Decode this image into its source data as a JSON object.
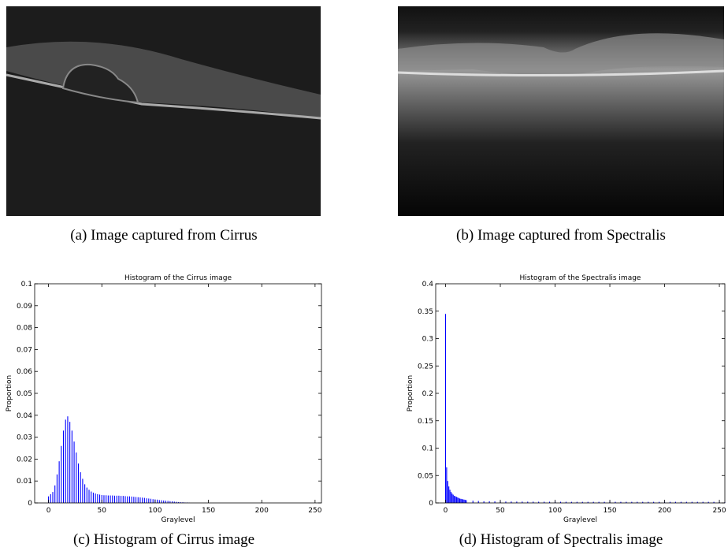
{
  "panels": [
    {
      "caption": "(a) Image captured from Cirrus"
    },
    {
      "caption": "(b) Image captured from Spectralis"
    }
  ],
  "chart_data": [
    {
      "type": "bar",
      "title": "Histogram of the Cirrus image",
      "caption": "(c) Histogram  of Cirrus image",
      "x_label": "Graylevel",
      "y_label": "Proportion",
      "color": "#0000ff",
      "x": [
        0,
        2,
        4,
        6,
        8,
        10,
        12,
        14,
        16,
        18,
        20,
        22,
        24,
        26,
        28,
        30,
        32,
        34,
        36,
        38,
        40,
        42,
        44,
        46,
        48,
        50,
        52,
        54,
        56,
        58,
        60,
        62,
        64,
        66,
        68,
        70,
        72,
        74,
        76,
        78,
        80,
        82,
        84,
        86,
        88,
        90,
        92,
        94,
        96,
        98,
        100,
        102,
        104,
        106,
        108,
        110,
        112,
        114,
        116,
        118,
        120,
        122,
        124,
        126,
        128,
        130,
        132
      ],
      "values": [
        0.003,
        0.004,
        0.005,
        0.008,
        0.013,
        0.019,
        0.026,
        0.033,
        0.038,
        0.0395,
        0.037,
        0.033,
        0.028,
        0.023,
        0.018,
        0.014,
        0.011,
        0.0085,
        0.007,
        0.006,
        0.0052,
        0.0047,
        0.0043,
        0.004,
        0.0038,
        0.0036,
        0.0035,
        0.0035,
        0.0034,
        0.0034,
        0.0034,
        0.0033,
        0.0033,
        0.0033,
        0.0032,
        0.0032,
        0.0031,
        0.003,
        0.003,
        0.0029,
        0.0028,
        0.0027,
        0.0026,
        0.0025,
        0.0024,
        0.0023,
        0.0021,
        0.002,
        0.0019,
        0.0017,
        0.0016,
        0.0015,
        0.0013,
        0.0012,
        0.0011,
        0.001,
        0.0009,
        0.0008,
        0.0007,
        0.0006,
        0.0005,
        0.0004,
        0.0003,
        0.0003,
        0.0002,
        0.0002,
        0.0001
      ],
      "xlim": [
        -13,
        256
      ],
      "xticks": [
        0,
        50,
        100,
        150,
        200,
        250
      ],
      "ylim": [
        0,
        0.1
      ],
      "yticks": [
        0,
        0.01,
        0.02,
        0.03,
        0.04,
        0.05,
        0.06,
        0.07,
        0.08,
        0.09,
        0.1
      ]
    },
    {
      "type": "bar",
      "title": "Histogram of the Spectralis image",
      "caption": "(d) Histogram  of Spectralis image",
      "x_label": "Graylevel",
      "y_label": "Proportion",
      "color": "#0000ff",
      "x": [
        0,
        1,
        2,
        3,
        4,
        5,
        6,
        7,
        8,
        9,
        10,
        11,
        12,
        13,
        14,
        15,
        16,
        17,
        18,
        19,
        25,
        30,
        35,
        40,
        45,
        50,
        55,
        60,
        65,
        70,
        75,
        80,
        85,
        90,
        95,
        100,
        105,
        110,
        115,
        120,
        125,
        130,
        135,
        140,
        145,
        150,
        155,
        160,
        165,
        170,
        175,
        180,
        185,
        190,
        195,
        200,
        205,
        210,
        215,
        220,
        225,
        230,
        235,
        240,
        245,
        250,
        255
      ],
      "values": [
        0.345,
        0.065,
        0.04,
        0.03,
        0.024,
        0.02,
        0.017,
        0.015,
        0.013,
        0.012,
        0.011,
        0.01,
        0.009,
        0.008,
        0.0075,
        0.007,
        0.0065,
        0.006,
        0.0055,
        0.005,
        0.004,
        0.0035,
        0.003,
        0.003,
        0.0028,
        0.0027,
        0.0025,
        0.0025,
        0.0024,
        0.0024,
        0.0023,
        0.0023,
        0.0022,
        0.0022,
        0.0022,
        0.0025,
        0.0021,
        0.0021,
        0.002,
        0.002,
        0.002,
        0.002,
        0.002,
        0.002,
        0.002,
        0.0025,
        0.002,
        0.002,
        0.002,
        0.002,
        0.002,
        0.002,
        0.002,
        0.002,
        0.002,
        0.002,
        0.002,
        0.002,
        0.002,
        0.002,
        0.002,
        0.002,
        0.002,
        0.002,
        0.002,
        0.002,
        0.0015
      ],
      "xlim": [
        -9,
        255
      ],
      "xticks": [
        0,
        50,
        100,
        150,
        200,
        250
      ],
      "ylim": [
        0,
        0.4
      ],
      "yticks": [
        0,
        0.05,
        0.1,
        0.15,
        0.2,
        0.25,
        0.3,
        0.35,
        0.4
      ]
    }
  ]
}
